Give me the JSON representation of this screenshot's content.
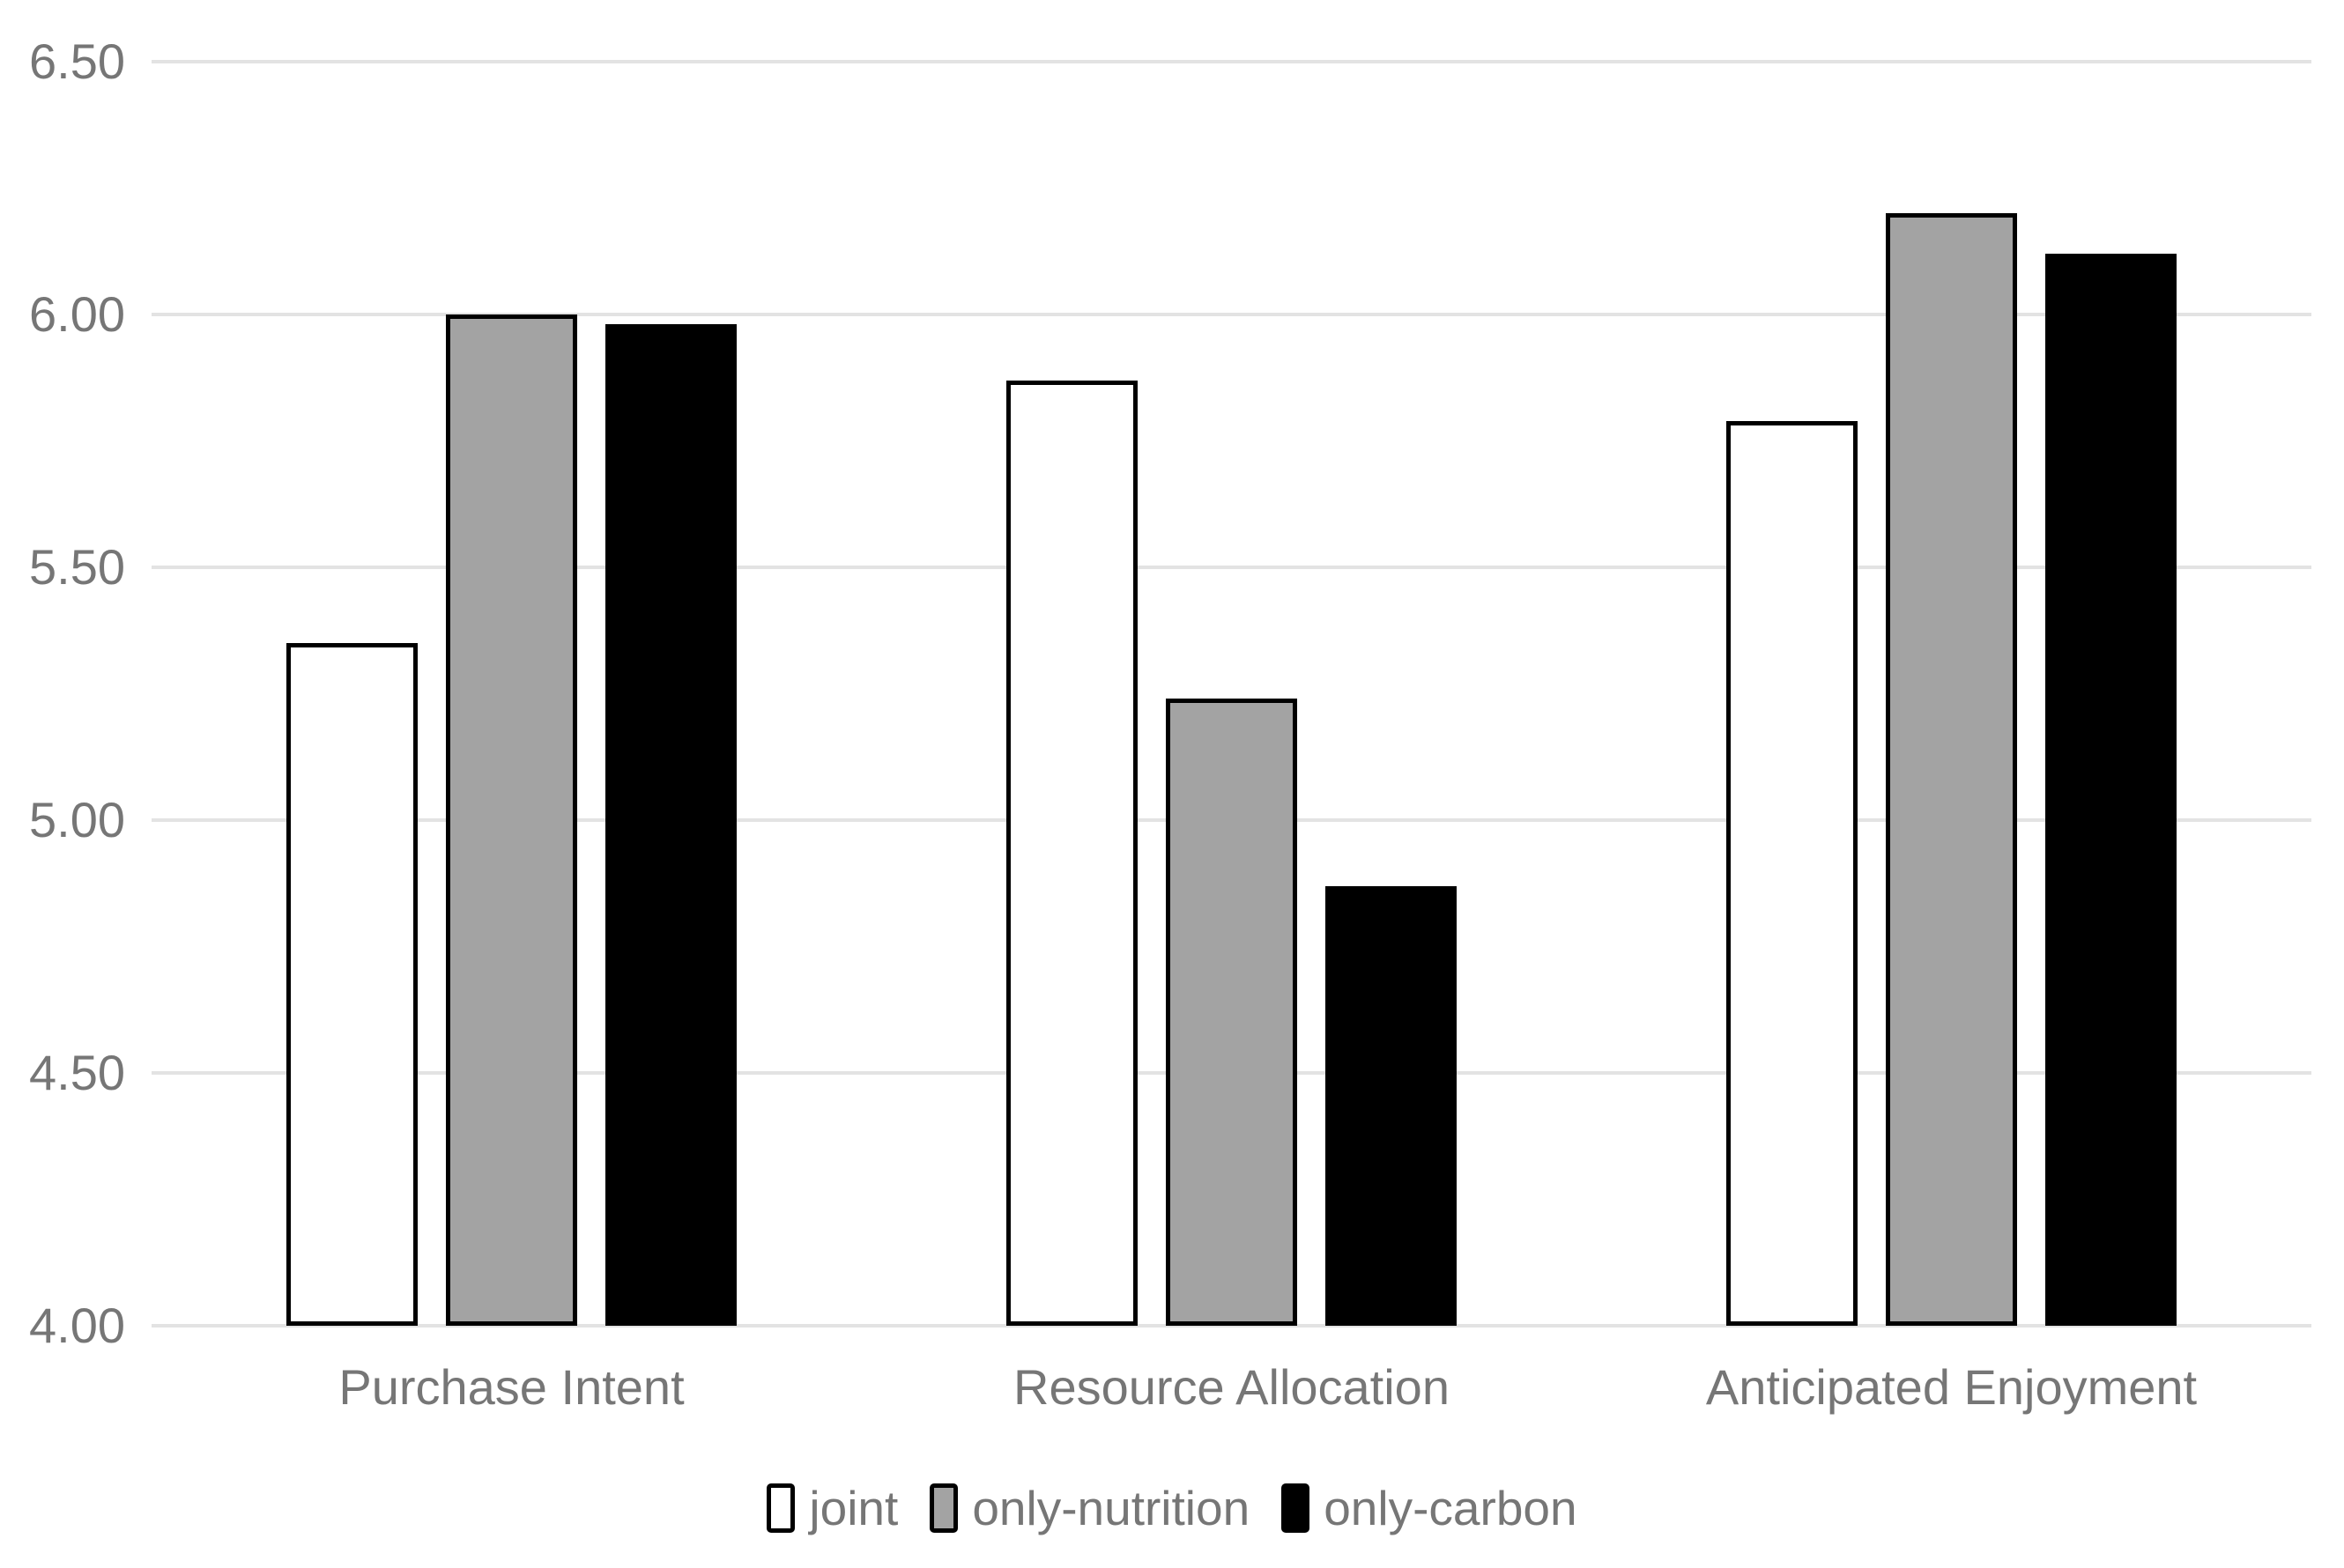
{
  "chart_data": {
    "type": "bar",
    "title": "",
    "xlabel": "",
    "ylabel": "",
    "categories": [
      "Purchase Intent",
      "Resource Allocation",
      "Anticipated Enjoyment"
    ],
    "series": [
      {
        "name": "joint",
        "values": [
          5.35,
          5.87,
          5.79
        ],
        "fill": "#ffffff"
      },
      {
        "name": "only-nutrition",
        "values": [
          6.0,
          5.24,
          6.2
        ],
        "fill": "#a3a3a3"
      },
      {
        "name": "only-carbon",
        "values": [
          5.98,
          4.87,
          6.12
        ],
        "fill": "#000000"
      }
    ],
    "ylim": [
      4.0,
      6.5
    ],
    "ytick_step": 0.5,
    "ytick_labels": [
      "4.00",
      "4.50",
      "5.00",
      "5.50",
      "6.00",
      "6.50"
    ],
    "grid": true,
    "legend_position": "bottom",
    "colors": {
      "bar_border": "#000000",
      "gridline": "#e3e3e3",
      "text": "#767676",
      "background": "#ffffff"
    }
  }
}
